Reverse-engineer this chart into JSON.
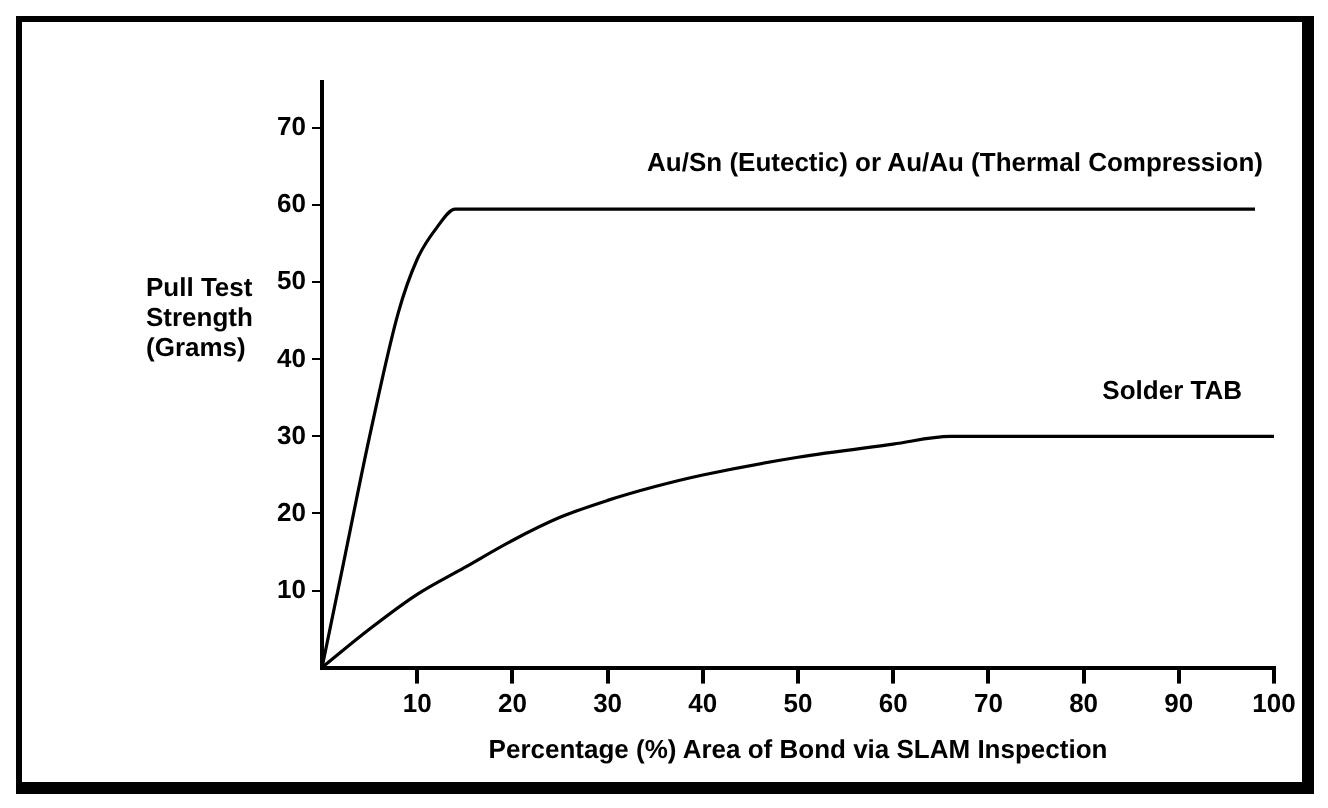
{
  "chart_data": {
    "type": "line",
    "xlabel": "Percentage (%) Area of Bond via SLAM Inspection",
    "ylabel": "Pull Test Strength (Grams)",
    "xlim": [
      0,
      100
    ],
    "ylim": [
      0,
      76
    ],
    "xticks": [
      10,
      20,
      30,
      40,
      50,
      60,
      70,
      80,
      90,
      100
    ],
    "yticks": [
      10,
      20,
      30,
      40,
      50,
      60,
      70
    ],
    "grid": false,
    "legend": false,
    "marker": "none",
    "line_style": "solid",
    "series": [
      {
        "name": "Au/Sn (Eutectic) or Au/Au (Thermal Compression)",
        "color": "#000000",
        "x": [
          0,
          2,
          5,
          8,
          10,
          12,
          14,
          98
        ],
        "values": [
          0,
          12,
          30,
          46,
          53,
          57,
          59.5,
          59.5
        ]
      },
      {
        "name": "Solder TAB",
        "color": "#000000",
        "x": [
          0,
          5,
          10,
          15,
          20,
          25,
          30,
          35,
          40,
          50,
          60,
          66,
          100
        ],
        "values": [
          0,
          5,
          9.5,
          13,
          16.5,
          19.5,
          21.7,
          23.5,
          25,
          27.3,
          29,
          30,
          30
        ]
      }
    ]
  }
}
